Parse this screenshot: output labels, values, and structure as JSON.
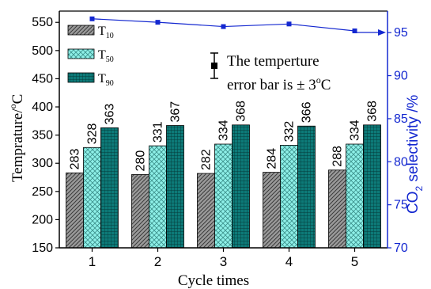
{
  "chart_data": {
    "type": "bar",
    "xlabel": "Cycle times",
    "ylabel_left": "Temprature/",
    "ylabel_left_sup": "o",
    "ylabel_left_tail": "C",
    "ylabel_right_pre": "CO",
    "ylabel_right_sub": "2",
    "ylabel_right_post": " selectivity /%",
    "categories": [
      "1",
      "2",
      "3",
      "4",
      "5"
    ],
    "ylim_left": [
      150,
      570
    ],
    "yticks_left": [
      150,
      200,
      250,
      300,
      350,
      400,
      450,
      500,
      550
    ],
    "ylim_right": [
      70,
      97.5
    ],
    "yticks_right": [
      70,
      75,
      80,
      85,
      90,
      95
    ],
    "series": [
      {
        "name": "T",
        "subscript": "10",
        "values": [
          283,
          280,
          282,
          284,
          288
        ],
        "fill": "#909090",
        "pattern": "diag"
      },
      {
        "name": "T",
        "subscript": "50",
        "values": [
          328,
          331,
          334,
          332,
          334
        ],
        "fill": "#8ef0e8",
        "pattern": "cross"
      },
      {
        "name": "T",
        "subscript": "90",
        "values": [
          363,
          367,
          368,
          366,
          368
        ],
        "fill": "#0a6e6e",
        "pattern": "grid"
      }
    ],
    "selectivity": {
      "values": [
        96.6,
        96.2,
        95.7,
        96.0,
        95.2
      ],
      "color": "#1428d0"
    },
    "annotation_line1": "The temperture",
    "annotation_line2": "error bar is ± 3",
    "annotation_sup": "o",
    "annotation_tail": "C",
    "legend_position": "top-left",
    "grid": false
  }
}
